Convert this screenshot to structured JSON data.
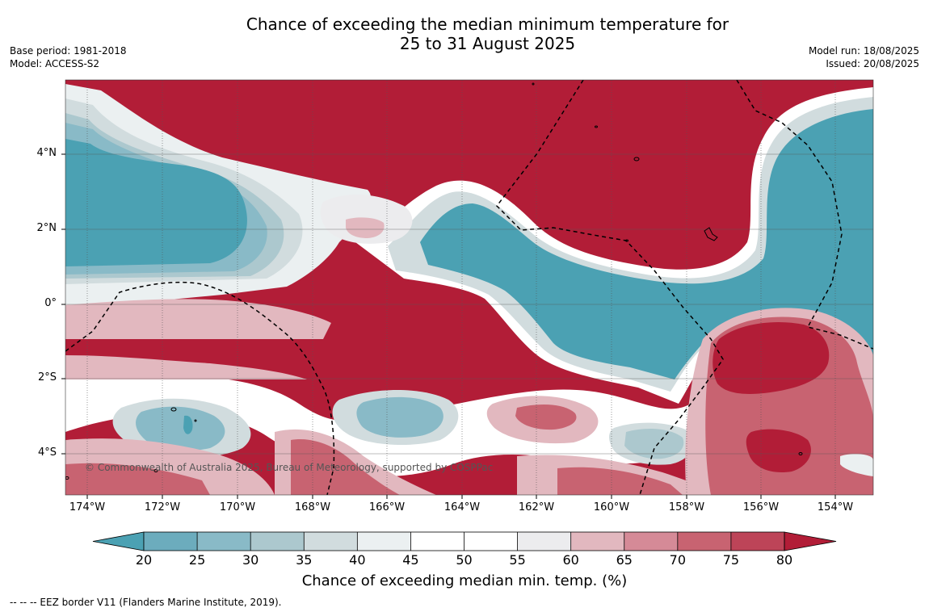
{
  "header": {
    "title_line1": "Chance of exceeding the median minimum temperature for",
    "title_line2": "25 to 31 August 2025",
    "base_period": "Base period: 1981-2018",
    "model": "Model: ACCESS-S2",
    "model_run": "Model run: 18/08/2025",
    "issued": "Issued: 20/08/2025"
  },
  "map": {
    "lat_labels": [
      "4°N",
      "2°N",
      "0°",
      "2°S",
      "4°S"
    ],
    "lon_labels": [
      "174°W",
      "172°W",
      "170°W",
      "168°W",
      "166°W",
      "164°W",
      "162°W",
      "160°W",
      "158°W",
      "156°W",
      "154°W"
    ],
    "copyright": "© Commonwealth of Australia 2025, Bureau of Meteorology, supported by COSPPac",
    "background_color": "#b21d37"
  },
  "colorbar": {
    "ticks": [
      "20",
      "25",
      "30",
      "35",
      "40",
      "45",
      "50",
      "55",
      "60",
      "65",
      "70",
      "75",
      "80"
    ],
    "colors": [
      "#4ba1b3",
      "#6cacbd",
      "#89bac7",
      "#acc8ce",
      "#d1dcde",
      "#ebf0f1",
      "#ffffff",
      "#ffffff",
      "#ececee",
      "#e2b8bf",
      "#d58a97",
      "#c86371",
      "#bd4458",
      "#b21d37"
    ],
    "label": "Chance of exceeding median min. temp. (%)"
  },
  "footer": {
    "legend": "--  --  -- EEZ border V11 (Flanders Marine Institute, 2019)."
  }
}
